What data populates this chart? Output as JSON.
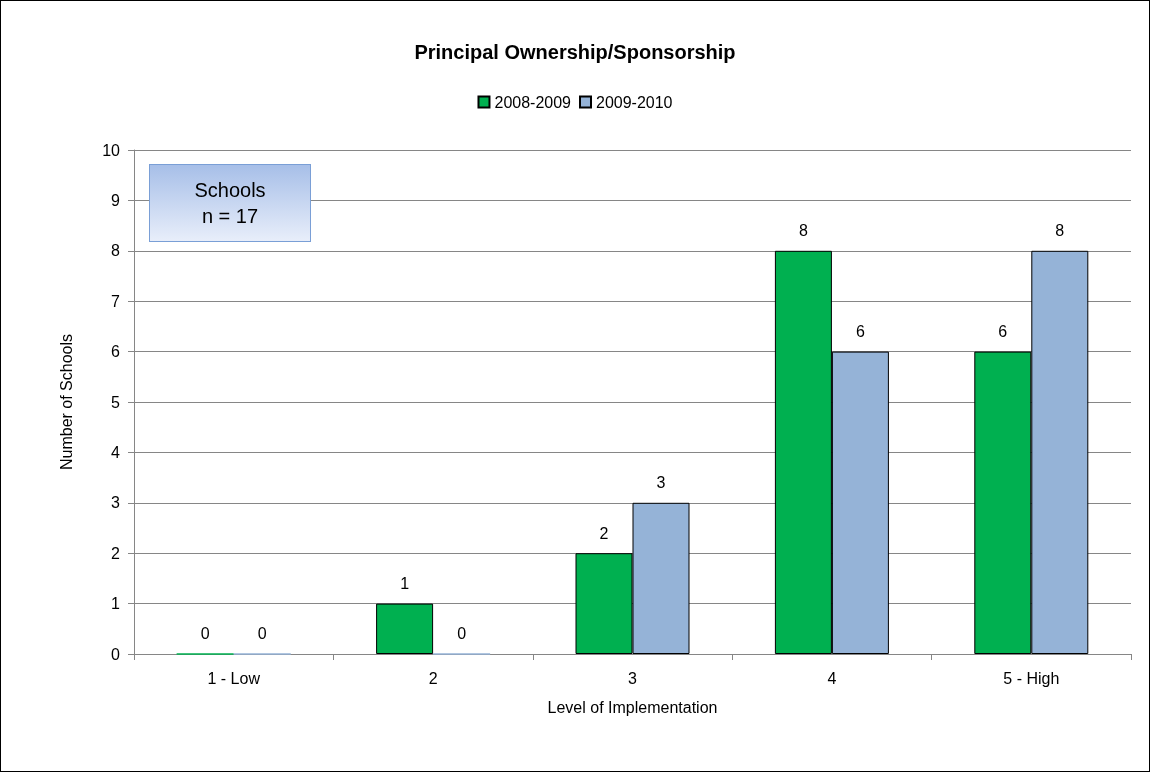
{
  "chart_data": {
    "type": "bar",
    "title": "Principal Ownership/Sponsorship",
    "xlabel": "Level of Implementation",
    "ylabel": "Number of Schools",
    "categories": [
      "1 - Low",
      "2",
      "3",
      "4",
      "5 - High"
    ],
    "series": [
      {
        "name": "2008-2009",
        "color": "#00b050",
        "values": [
          0,
          1,
          2,
          8,
          6
        ]
      },
      {
        "name": "2009-2010",
        "color": "#95b3d7",
        "values": [
          0,
          0,
          3,
          6,
          8
        ]
      }
    ],
    "ylim": [
      0,
      10
    ],
    "yticks": [
      0,
      1,
      2,
      3,
      4,
      5,
      6,
      7,
      8,
      9,
      10
    ],
    "grid": "y",
    "legend": "top",
    "data_labels": true,
    "annotations": [
      "Schools\nn = 17"
    ]
  }
}
